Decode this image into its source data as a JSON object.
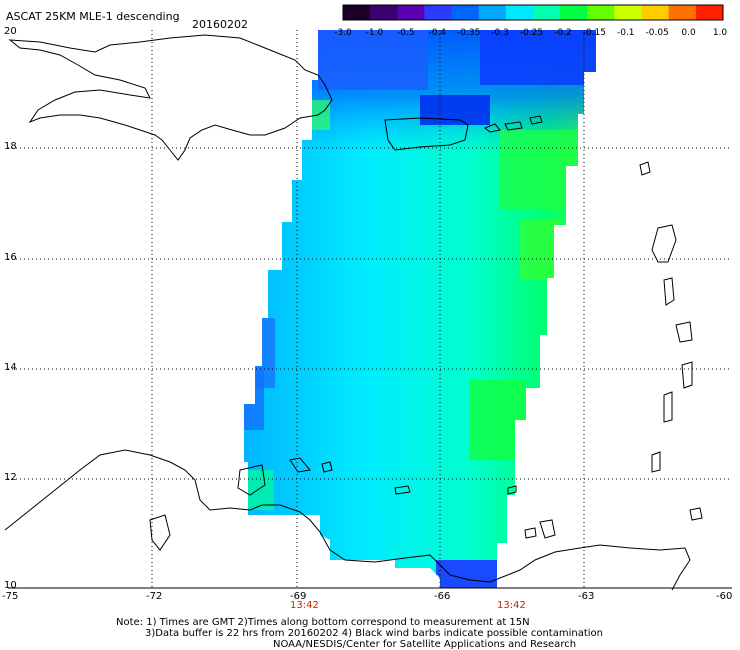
{
  "header": {
    "title": "ASCAT 25KM MLE-1 descending",
    "date": "20160202"
  },
  "colorbar": {
    "labels": [
      "-3.0",
      "-1.0",
      "-0.5",
      "-0.4",
      "-0.35",
      "-0.3",
      "-0.25",
      "-0.2",
      "-0.15",
      "-0.1",
      "-0.05",
      "0.0",
      "1.0"
    ],
    "colors": [
      "#1a0026",
      "#3a0070",
      "#5a00b0",
      "#2a3cff",
      "#0066ff",
      "#00a8ff",
      "#00e8ff",
      "#00ffb0",
      "#00ff40",
      "#66ff00",
      "#ccff00",
      "#ffcc00",
      "#ff7000",
      "#ff2000"
    ]
  },
  "map": {
    "lat_labels": [
      "20",
      "18",
      "16",
      "14",
      "12",
      "10"
    ],
    "lon_labels": [
      "-75",
      "-72",
      "-69",
      "-66",
      "-63",
      "-60"
    ],
    "time_labels": [
      "13:42",
      "13:42"
    ]
  },
  "footer": {
    "line1": "Note: 1) Times are GMT 2)Times along bottom correspond to measurement at 15N",
    "line2": "3)Data buffer is 22 hrs from 20160202 4) Black wind barbs indicate possible contamination",
    "line3": "NOAA/NESDIS/Center for Satellite Applications and Research"
  }
}
